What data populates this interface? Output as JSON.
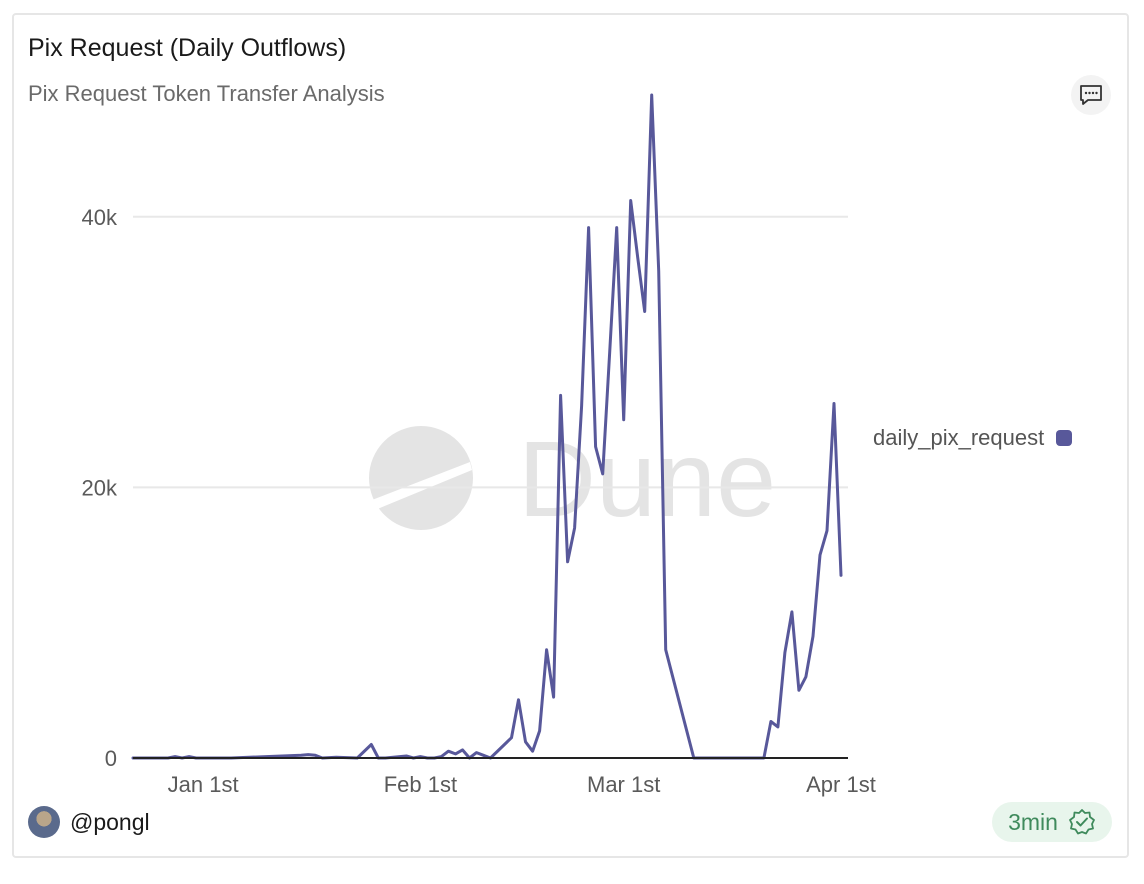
{
  "card": {
    "title": "Pix Request (Daily Outflows)",
    "subtitle": "Pix Request Token Transfer Analysis",
    "author": "@pongl",
    "refresh_badge": "3min",
    "comment_icon": "comment-icon",
    "verified_icon": "verified-check-icon",
    "watermark": "Dune"
  },
  "colors": {
    "series": "#58589a",
    "grid": "#e8e8e8",
    "axis_text": "#5a5a5a",
    "watermark": "#e4e4e4",
    "badge_bg": "#e8f5ec",
    "badge_text": "#3f8a5c"
  },
  "chart_data": {
    "type": "line",
    "title": "Pix Request (Daily Outflows)",
    "subtitle": "Pix Request Token Transfer Analysis",
    "xlabel": "",
    "ylabel": "",
    "x_type": "date",
    "xlim": [
      "2023-12-22",
      "2024-04-02"
    ],
    "ylim": [
      0,
      49000
    ],
    "y_ticks": [
      0,
      20000,
      40000
    ],
    "y_tick_labels": [
      "0",
      "20k",
      "40k"
    ],
    "x_ticks": [
      "2024-01-01",
      "2024-02-01",
      "2024-03-01",
      "2024-04-01"
    ],
    "x_tick_labels": [
      "Jan 1st",
      "Feb 1st",
      "Mar 1st",
      "Apr 1st"
    ],
    "grid": true,
    "legend_position": "right",
    "series": [
      {
        "name": "daily_pix_request",
        "x": [
          "2023-12-22",
          "2023-12-27",
          "2023-12-28",
          "2023-12-29",
          "2023-12-30",
          "2023-12-31",
          "2024-01-05",
          "2024-01-10",
          "2024-01-15",
          "2024-01-16",
          "2024-01-17",
          "2024-01-18",
          "2024-01-20",
          "2024-01-23",
          "2024-01-25",
          "2024-01-26",
          "2024-01-27",
          "2024-01-30",
          "2024-01-31",
          "2024-02-01",
          "2024-02-02",
          "2024-02-03",
          "2024-02-04",
          "2024-02-05",
          "2024-02-06",
          "2024-02-07",
          "2024-02-08",
          "2024-02-09",
          "2024-02-10",
          "2024-02-11",
          "2024-02-14",
          "2024-02-15",
          "2024-02-16",
          "2024-02-17",
          "2024-02-18",
          "2024-02-19",
          "2024-02-20",
          "2024-02-21",
          "2024-02-22",
          "2024-02-23",
          "2024-02-24",
          "2024-02-25",
          "2024-02-26",
          "2024-02-27",
          "2024-02-28",
          "2024-02-29",
          "2024-03-01",
          "2024-03-02",
          "2024-03-03",
          "2024-03-04",
          "2024-03-05",
          "2024-03-06",
          "2024-03-07",
          "2024-03-11",
          "2024-03-12",
          "2024-03-13",
          "2024-03-14",
          "2024-03-15",
          "2024-03-16",
          "2024-03-17",
          "2024-03-18",
          "2024-03-19",
          "2024-03-20",
          "2024-03-21",
          "2024-03-22",
          "2024-03-23",
          "2024-03-24",
          "2024-03-25",
          "2024-03-26",
          "2024-03-27",
          "2024-03-28",
          "2024-03-29",
          "2024-03-30",
          "2024-03-31",
          "2024-04-01"
        ],
        "y": [
          0,
          0,
          100,
          0,
          100,
          0,
          0,
          100,
          200,
          250,
          200,
          0,
          50,
          0,
          1000,
          0,
          0,
          150,
          0,
          100,
          0,
          0,
          100,
          500,
          300,
          600,
          0,
          400,
          200,
          0,
          1500,
          4300,
          1200,
          500,
          2000,
          8000,
          4500,
          26800,
          14500,
          17000,
          26000,
          39200,
          23000,
          21000,
          30000,
          39200,
          25000,
          41200,
          37000,
          33000,
          49000,
          36000,
          8000,
          0,
          0,
          0,
          0,
          0,
          0,
          0,
          0,
          0,
          0,
          0,
          2700,
          2300,
          7800,
          10800,
          5000,
          6000,
          9000,
          15000,
          16800,
          26200,
          13500
        ]
      }
    ]
  }
}
